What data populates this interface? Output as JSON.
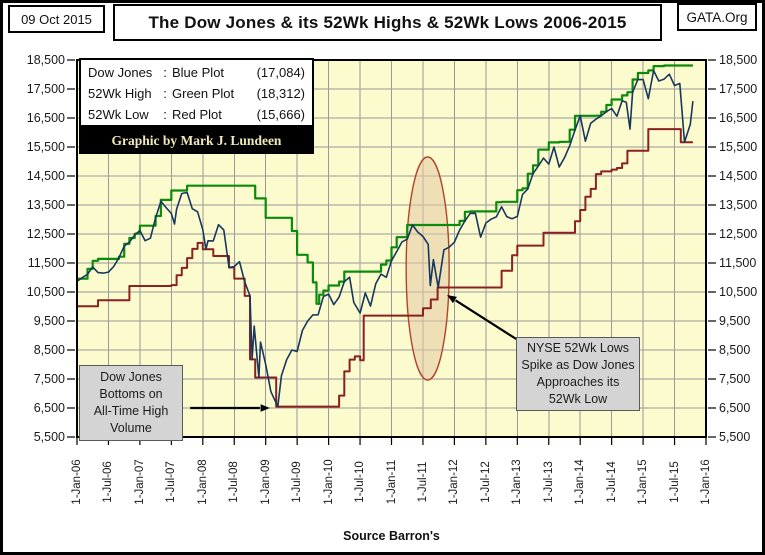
{
  "header": {
    "date": "09 Oct 2015",
    "title": "The Dow Jones & its 52Wk Highs & 52Wk Lows 2006-2015",
    "org": "GATA.Org"
  },
  "legend": {
    "rows": [
      {
        "name": "Dow Jones",
        "colon": ":",
        "plot": "Blue Plot",
        "value": "(17,084)"
      },
      {
        "name": "52Wk High",
        "colon": ":",
        "plot": "Green Plot",
        "value": "(18,312)"
      },
      {
        "name": "52Wk Low",
        "colon": ":",
        "plot": "Red Plot",
        "value": "(15,666)"
      }
    ],
    "credit": "Graphic by Mark J. Lundeen"
  },
  "annotations": {
    "bottom_left": {
      "lines": [
        "Dow Jones",
        "Bottoms on",
        "All-Time High",
        "Volume"
      ]
    },
    "mid_right": {
      "lines": [
        "NYSE 52Wk Lows",
        "Spike as Dow Jones",
        "Approaches its",
        "52Wk  Low"
      ]
    }
  },
  "source": "Source Barron's",
  "chart_data": {
    "type": "line",
    "title": "The Dow Jones & its 52Wk Highs & 52Wk Lows 2006-2015",
    "plot_bg": "#FBFBCE",
    "grid_color": "#9A9A9A",
    "grid": true,
    "x_axis": {
      "unit": "months since 1-Jan-2006",
      "range_months": [
        0,
        120
      ],
      "tick_interval_months": 6,
      "tick_labels": [
        "1-Jan-06",
        "1-Jul-06",
        "1-Jan-07",
        "1-Jul-07",
        "1-Jan-08",
        "1-Jul-08",
        "1-Jan-09",
        "1-Jul-09",
        "1-Jan-10",
        "1-Jul-10",
        "1-Jan-11",
        "1-Jul-11",
        "1-Jan-12",
        "1-Jul-12",
        "1-Jan-13",
        "1-Jul-13",
        "1-Jan-14",
        "1-Jul-14",
        "1-Jan-15",
        "1-Jul-15",
        "1-Jan-16"
      ]
    },
    "y_axis": {
      "range": [
        5500,
        18500
      ],
      "tick_step": 1000,
      "tick_labels": [
        "18,500",
        "17,500",
        "16,500",
        "15,500",
        "14,500",
        "13,500",
        "12,500",
        "11,500",
        "10,500",
        "9,500",
        "8,500",
        "7,500",
        "6,500",
        "5,500"
      ]
    },
    "series": [
      {
        "name": "Dow Jones",
        "color": "#17375E",
        "width": 1.6,
        "interpolation": "linear",
        "latest": 17084,
        "points": [
          [
            0,
            10865
          ],
          [
            1,
            10993
          ],
          [
            2,
            11109
          ],
          [
            3,
            11367
          ],
          [
            4,
            11168
          ],
          [
            5,
            11150
          ],
          [
            6,
            11186
          ],
          [
            7,
            11381
          ],
          [
            8,
            11679
          ],
          [
            9,
            12080
          ],
          [
            10,
            12222
          ],
          [
            11,
            12463
          ],
          [
            12,
            12622
          ],
          [
            13,
            12269
          ],
          [
            14,
            12354
          ],
          [
            15,
            13063
          ],
          [
            16,
            13628
          ],
          [
            17,
            13409
          ],
          [
            18,
            13212
          ],
          [
            18.6,
            12846
          ],
          [
            19,
            13358
          ],
          [
            20,
            13896
          ],
          [
            21,
            13930
          ],
          [
            22,
            13372
          ],
          [
            23,
            13265
          ],
          [
            24,
            12650
          ],
          [
            24.6,
            11971
          ],
          [
            25,
            12266
          ],
          [
            26,
            12263
          ],
          [
            27,
            12820
          ],
          [
            28,
            12638
          ],
          [
            29,
            11350
          ],
          [
            30,
            11378
          ],
          [
            31,
            11544
          ],
          [
            32,
            10851
          ],
          [
            33,
            10365
          ],
          [
            33.4,
            8176
          ],
          [
            33.8,
            9325
          ],
          [
            34.7,
            7552
          ],
          [
            35,
            8776
          ],
          [
            36,
            8001
          ],
          [
            37,
            7063
          ],
          [
            38.3,
            6547
          ],
          [
            39,
            7609
          ],
          [
            40,
            8168
          ],
          [
            41,
            8500
          ],
          [
            42,
            8447
          ],
          [
            43,
            9172
          ],
          [
            44,
            9496
          ],
          [
            45,
            9712
          ],
          [
            46,
            9713
          ],
          [
            47,
            10345
          ],
          [
            48,
            10428
          ],
          [
            49,
            10067
          ],
          [
            50,
            10325
          ],
          [
            51,
            10857
          ],
          [
            52,
            11009
          ],
          [
            52.8,
            10137
          ],
          [
            54,
            9774
          ],
          [
            55,
            10466
          ],
          [
            56,
            10015
          ],
          [
            57,
            10788
          ],
          [
            58,
            11118
          ],
          [
            59,
            11006
          ],
          [
            60,
            11578
          ],
          [
            61,
            11892
          ],
          [
            62,
            12226
          ],
          [
            63,
            12320
          ],
          [
            64,
            12811
          ],
          [
            65,
            12570
          ],
          [
            66,
            12414
          ],
          [
            67,
            12143
          ],
          [
            67.4,
            10720
          ],
          [
            68,
            11614
          ],
          [
            68.9,
            10655
          ],
          [
            70,
            11955
          ],
          [
            71,
            12046
          ],
          [
            72,
            12218
          ],
          [
            73,
            12633
          ],
          [
            74,
            12952
          ],
          [
            75,
            13212
          ],
          [
            76,
            13214
          ],
          [
            77,
            12393
          ],
          [
            78,
            12880
          ],
          [
            79,
            13009
          ],
          [
            80,
            13091
          ],
          [
            81,
            13437
          ],
          [
            82,
            13096
          ],
          [
            83,
            13026
          ],
          [
            84,
            13104
          ],
          [
            85,
            13861
          ],
          [
            86,
            14054
          ],
          [
            87,
            14579
          ],
          [
            88,
            14840
          ],
          [
            89,
            15116
          ],
          [
            90,
            14910
          ],
          [
            91,
            15500
          ],
          [
            92,
            14810
          ],
          [
            93,
            15130
          ],
          [
            94,
            15546
          ],
          [
            95,
            16086
          ],
          [
            96,
            16577
          ],
          [
            97,
            15699
          ],
          [
            98,
            16322
          ],
          [
            99,
            16458
          ],
          [
            100,
            16581
          ],
          [
            101,
            16717
          ],
          [
            102,
            16827
          ],
          [
            103,
            16563
          ],
          [
            104,
            17098
          ],
          [
            104.8,
            17043
          ],
          [
            105.5,
            16117
          ],
          [
            106,
            17391
          ],
          [
            107,
            17828
          ],
          [
            108,
            17823
          ],
          [
            109,
            17165
          ],
          [
            110,
            18133
          ],
          [
            111,
            17776
          ],
          [
            112,
            17841
          ],
          [
            113,
            18011
          ],
          [
            114,
            17620
          ],
          [
            115,
            17690
          ],
          [
            115.9,
            15666
          ],
          [
            117,
            16285
          ],
          [
            117.5,
            17084
          ]
        ]
      },
      {
        "name": "52Wk High",
        "color": "#0B8A0B",
        "width": 2.2,
        "interpolation": "step",
        "latest": 18312,
        "points": [
          [
            0,
            10960
          ],
          [
            2,
            11300
          ],
          [
            3,
            11577
          ],
          [
            4,
            11643
          ],
          [
            8,
            11718
          ],
          [
            9,
            12163
          ],
          [
            10,
            12361
          ],
          [
            11,
            12510
          ],
          [
            12,
            12786
          ],
          [
            15,
            13120
          ],
          [
            16,
            13676
          ],
          [
            18,
            14000
          ],
          [
            21,
            14164
          ],
          [
            34,
            13727
          ],
          [
            36,
            13058
          ],
          [
            41,
            12604
          ],
          [
            42,
            11782
          ],
          [
            44,
            11516
          ],
          [
            45,
            10831
          ],
          [
            45.7,
            10092
          ],
          [
            46.2,
            10406
          ],
          [
            47,
            10548
          ],
          [
            48,
            10725
          ],
          [
            50,
            10857
          ],
          [
            51,
            11205
          ],
          [
            58,
            11444
          ],
          [
            59,
            11585
          ],
          [
            60,
            12040
          ],
          [
            61,
            12391
          ],
          [
            63,
            12810
          ],
          [
            73,
            12952
          ],
          [
            74,
            13264
          ],
          [
            75,
            13279
          ],
          [
            80,
            13596
          ],
          [
            81,
            13610
          ],
          [
            84,
            14009
          ],
          [
            85,
            14075
          ],
          [
            86,
            14578
          ],
          [
            87,
            14865
          ],
          [
            88,
            15409
          ],
          [
            90,
            15658
          ],
          [
            92,
            15676
          ],
          [
            93,
            15680
          ],
          [
            94,
            16097
          ],
          [
            95,
            16577
          ],
          [
            99,
            16580
          ],
          [
            100,
            16717
          ],
          [
            101,
            16947
          ],
          [
            102,
            17138
          ],
          [
            104,
            17279
          ],
          [
            105,
            17391
          ],
          [
            106,
            17828
          ],
          [
            107,
            18053
          ],
          [
            109,
            18140
          ],
          [
            110,
            18288
          ],
          [
            112,
            18312
          ],
          [
            117.5,
            18312
          ]
        ]
      },
      {
        "name": "52Wk Low",
        "color": "#8B2121",
        "width": 2,
        "interpolation": "step",
        "latest": 15666,
        "points": [
          [
            0,
            10012
          ],
          [
            4,
            10216
          ],
          [
            10,
            10706
          ],
          [
            18,
            10739
          ],
          [
            19,
            11077
          ],
          [
            20,
            11331
          ],
          [
            21,
            11670
          ],
          [
            22,
            11986
          ],
          [
            23,
            12194
          ],
          [
            24,
            11971
          ],
          [
            26,
            11740
          ],
          [
            29,
            11346
          ],
          [
            30,
            10963
          ],
          [
            32,
            10365
          ],
          [
            33,
            8176
          ],
          [
            34,
            7552
          ],
          [
            38,
            6547
          ],
          [
            50,
            6926
          ],
          [
            51,
            7762
          ],
          [
            52,
            8168
          ],
          [
            53,
            8280
          ],
          [
            54,
            8146
          ],
          [
            54.7,
            9686
          ],
          [
            66,
            9939
          ],
          [
            67.5,
            10240
          ],
          [
            68.8,
            10655
          ],
          [
            81,
            11232
          ],
          [
            83,
            11766
          ],
          [
            84,
            12101
          ],
          [
            89,
            12542
          ],
          [
            95,
            12938
          ],
          [
            96,
            13329
          ],
          [
            97,
            13784
          ],
          [
            98,
            14054
          ],
          [
            99,
            14565
          ],
          [
            100,
            14659
          ],
          [
            102,
            14719
          ],
          [
            103,
            14776
          ],
          [
            104,
            14936
          ],
          [
            105,
            15372
          ],
          [
            109,
            16117
          ],
          [
            115.2,
            15666
          ],
          [
            117.5,
            15666
          ]
        ]
      }
    ],
    "highlight_ellipse": {
      "center_month": 66.9,
      "center_value": 11311,
      "radius_months": 4.1,
      "radius_value": 3845,
      "fill": "#E3C9A2",
      "fill_opacity": 0.55,
      "stroke": "#B0442C"
    },
    "arrows": [
      {
        "from_month": 21.6,
        "from_value": 6500,
        "to_month": 36.8,
        "to_value": 6500
      },
      {
        "from_month": 83.8,
        "from_value": 8879,
        "to_month": 70.6,
        "to_value": 10397
      }
    ]
  }
}
